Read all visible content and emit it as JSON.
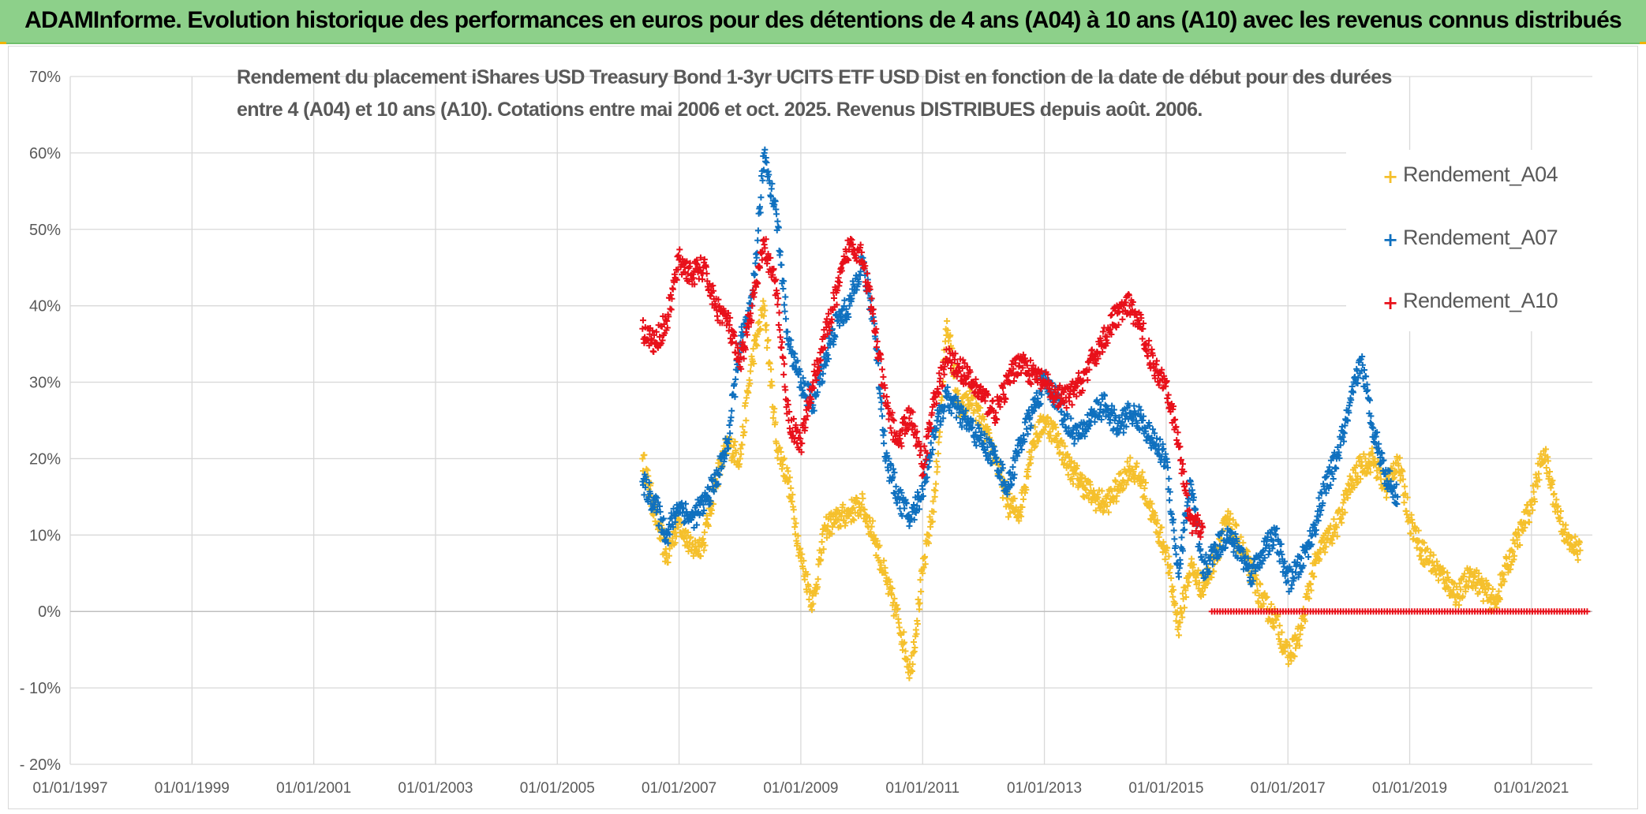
{
  "banner": {
    "title": "ADAMInforme. Evolution historique des performances en euros pour des détentions de 4 ans (A04) à 10 ans (A10) avec les revenus connus distribués"
  },
  "chart_data": {
    "type": "scatter",
    "title_lines": [
      "Rendement du placement iShares USD Treasury Bond 1-3yr UCITS ETF USD Dist en fonction de la date de début pour des durées",
      "entre 4 (A04) et 10 ans (A10). Cotations entre mai 2006 et oct. 2025. Revenus DISTRIBUES depuis août. 2006."
    ],
    "xlabel": "",
    "ylabel": "",
    "x_range": [
      1997.0,
      2022.0
    ],
    "xticks": [
      {
        "value": 1997,
        "label": "01/01/1997"
      },
      {
        "value": 1999,
        "label": "01/01/1999"
      },
      {
        "value": 2001,
        "label": "01/01/2001"
      },
      {
        "value": 2003,
        "label": "01/01/2003"
      },
      {
        "value": 2005,
        "label": "01/01/2005"
      },
      {
        "value": 2007,
        "label": "01/01/2007"
      },
      {
        "value": 2009,
        "label": "01/01/2009"
      },
      {
        "value": 2011,
        "label": "01/01/2011"
      },
      {
        "value": 2013,
        "label": "01/01/2013"
      },
      {
        "value": 2015,
        "label": "01/01/2015"
      },
      {
        "value": 2017,
        "label": "01/01/2017"
      },
      {
        "value": 2019,
        "label": "01/01/2019"
      },
      {
        "value": 2021,
        "label": "01/01/2021"
      }
    ],
    "ylim": [
      -20,
      70
    ],
    "yticks": [
      {
        "value": 70,
        "label": "70%"
      },
      {
        "value": 60,
        "label": "60%"
      },
      {
        "value": 50,
        "label": "50%"
      },
      {
        "value": 40,
        "label": "40%"
      },
      {
        "value": 30,
        "label": "30%"
      },
      {
        "value": 20,
        "label": "20%"
      },
      {
        "value": 10,
        "label": "10%"
      },
      {
        "value": 0,
        "label": "0%"
      },
      {
        "value": -10,
        "label": "- 10%"
      },
      {
        "value": -20,
        "label": "- 20%"
      }
    ],
    "grid": true,
    "legend_position": "top-right",
    "series": [
      {
        "name": "Rendement_A04",
        "color": "#f5c02c",
        "x": [
          2006.4,
          2006.6,
          2006.8,
          2007.0,
          2007.2,
          2007.4,
          2007.6,
          2007.8,
          2008.0,
          2008.2,
          2008.4,
          2008.6,
          2008.8,
          2009.0,
          2009.2,
          2009.4,
          2009.6,
          2009.8,
          2010.0,
          2010.2,
          2010.4,
          2010.6,
          2010.8,
          2011.0,
          2011.2,
          2011.4,
          2011.6,
          2011.8,
          2012.0,
          2012.2,
          2012.4,
          2012.6,
          2012.8,
          2013.0,
          2013.2,
          2013.4,
          2013.6,
          2013.8,
          2014.0,
          2014.2,
          2014.4,
          2014.6,
          2014.8,
          2015.0,
          2015.2,
          2015.4,
          2015.6,
          2015.8,
          2016.0,
          2016.2,
          2016.4,
          2016.6,
          2016.8,
          2017.0,
          2017.2,
          2017.4,
          2017.6,
          2017.8,
          2018.0,
          2018.2,
          2018.4,
          2018.6,
          2018.8,
          2019.0,
          2019.2,
          2019.4,
          2019.6,
          2019.8,
          2020.0,
          2020.2,
          2020.4,
          2020.6,
          2020.8,
          2021.0,
          2021.2,
          2021.4,
          2021.6,
          2021.8
        ],
        "values": [
          20,
          13,
          7,
          12,
          8,
          9,
          17,
          22,
          20,
          33,
          40,
          22,
          17,
          7,
          1,
          11,
          12,
          13,
          14,
          10,
          4,
          -1,
          -8,
          5,
          15,
          38,
          26,
          28,
          24,
          20,
          14,
          13,
          22,
          25,
          23,
          19,
          17,
          15,
          14,
          16,
          19,
          17,
          12,
          8,
          -2,
          6,
          3,
          7,
          12,
          9,
          5,
          1,
          -1,
          -6,
          -3,
          5,
          9,
          11,
          16,
          19,
          20,
          16,
          20,
          12,
          8,
          6,
          4,
          2,
          5,
          3,
          1,
          6,
          10,
          14,
          21,
          14,
          9,
          8
        ]
      },
      {
        "name": "Rendement_A07",
        "color": "#0f70bf",
        "x": [
          2006.4,
          2006.6,
          2006.8,
          2007.0,
          2007.2,
          2007.4,
          2007.6,
          2007.8,
          2008.0,
          2008.2,
          2008.4,
          2008.6,
          2008.8,
          2009.0,
          2009.2,
          2009.4,
          2009.6,
          2009.8,
          2010.0,
          2010.2,
          2010.4,
          2010.6,
          2010.8,
          2011.0,
          2011.2,
          2011.4,
          2011.6,
          2011.8,
          2012.0,
          2012.2,
          2012.4,
          2012.6,
          2012.8,
          2013.0,
          2013.2,
          2013.4,
          2013.6,
          2013.8,
          2014.0,
          2014.2,
          2014.4,
          2014.6,
          2014.8,
          2015.0,
          2015.2,
          2015.4,
          2015.6,
          2015.8,
          2016.0,
          2016.2,
          2016.4,
          2016.6,
          2016.8,
          2017.0,
          2017.2,
          2017.4,
          2017.6,
          2017.8,
          2018.0,
          2018.2,
          2018.4,
          2018.6,
          2018.8
        ],
        "values": [
          17,
          14,
          10,
          14,
          12,
          14,
          17,
          22,
          35,
          40,
          60,
          52,
          35,
          30,
          27,
          33,
          38,
          40,
          46,
          38,
          20,
          15,
          12,
          16,
          24,
          28,
          26,
          24,
          22,
          20,
          16,
          22,
          26,
          30,
          28,
          24,
          23,
          26,
          27,
          24,
          26,
          25,
          22,
          20,
          5,
          17,
          5,
          8,
          10,
          8,
          5,
          8,
          10,
          4,
          6,
          10,
          16,
          20,
          26,
          33,
          24,
          18,
          15
        ]
      },
      {
        "name": "Rendement_A10",
        "color": "#e8101a",
        "x": [
          2006.4,
          2006.6,
          2006.8,
          2007.0,
          2007.2,
          2007.4,
          2007.6,
          2007.8,
          2008.0,
          2008.2,
          2008.4,
          2008.6,
          2008.8,
          2009.0,
          2009.2,
          2009.4,
          2009.6,
          2009.8,
          2010.0,
          2010.2,
          2010.4,
          2010.6,
          2010.8,
          2011.0,
          2011.2,
          2011.4,
          2011.6,
          2011.8,
          2012.0,
          2012.2,
          2012.4,
          2012.6,
          2012.8,
          2013.0,
          2013.2,
          2013.4,
          2013.6,
          2013.8,
          2014.0,
          2014.2,
          2014.4,
          2014.6,
          2014.8,
          2015.0,
          2015.2,
          2015.4,
          2015.6
        ],
        "values": [
          37,
          35,
          38,
          46,
          44,
          45,
          40,
          38,
          32,
          40,
          48,
          42,
          25,
          22,
          30,
          36,
          42,
          48,
          47,
          38,
          27,
          22,
          26,
          19,
          28,
          33,
          32,
          30,
          28,
          26,
          30,
          33,
          31,
          30,
          28,
          28,
          30,
          33,
          36,
          39,
          40,
          37,
          32,
          30,
          22,
          12,
          11
        ]
      }
    ],
    "flat_segment": {
      "name": "Rendement_A10",
      "x_start": 2015.75,
      "x_end": 2021.95,
      "value": 0
    }
  }
}
